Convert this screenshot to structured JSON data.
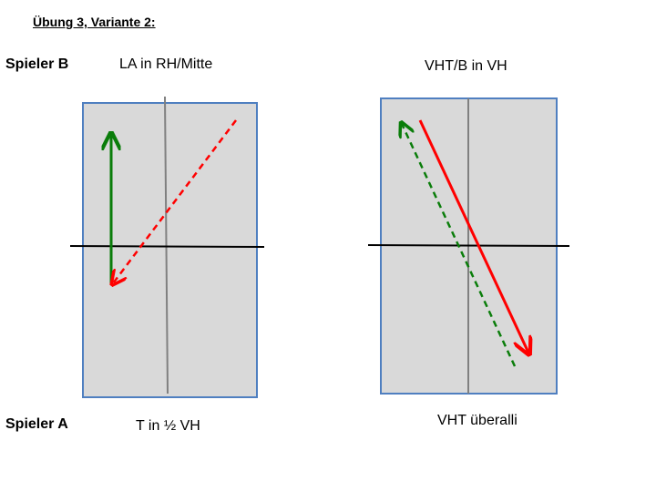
{
  "title": "Übung 3, Variante 2:",
  "player_b": "Spieler B",
  "player_a": "Spieler A",
  "left_panel": {
    "top_label": "LA in RH/Mitte",
    "bottom_label": "T in ½ VH"
  },
  "right_panel": {
    "top_label": "VHT/B in VH",
    "bottom_label": "VHT überalli"
  },
  "colors": {
    "table_fill": "#d9d9d9",
    "table_border": "#4f7fc0",
    "net_line": "#000000",
    "center_line": "#808080",
    "arrow_red": "#ff0000",
    "arrow_green": "#0a7d0a"
  }
}
